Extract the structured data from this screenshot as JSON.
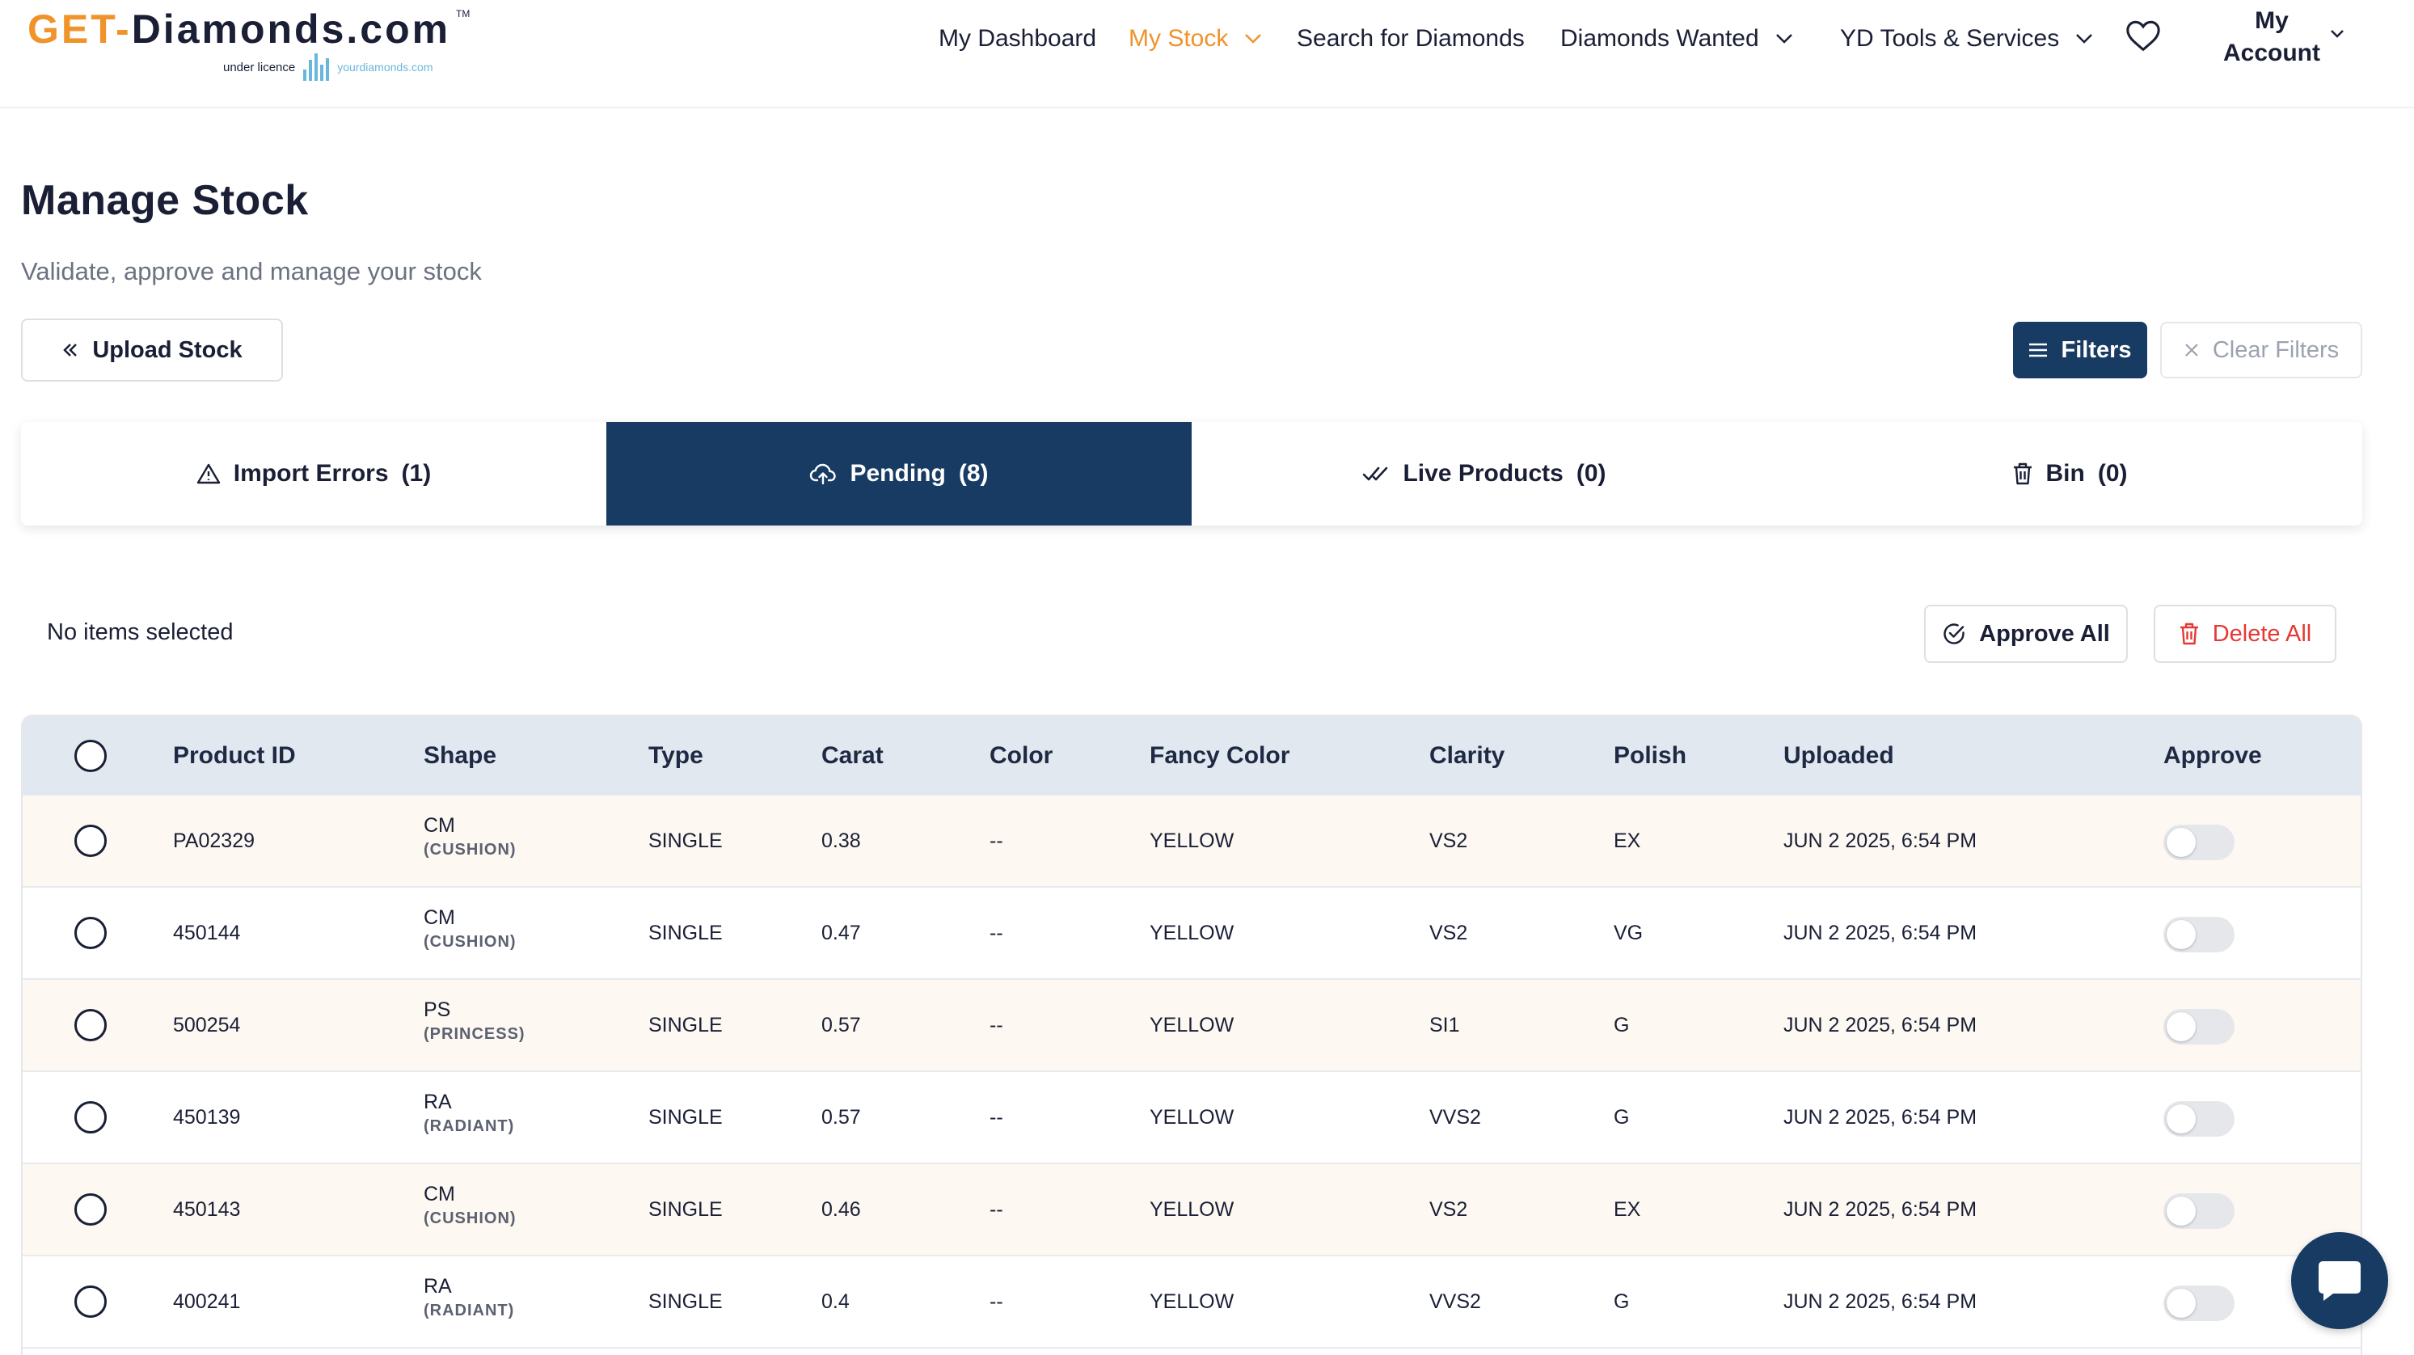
{
  "brand": {
    "logo_part1": "GET-",
    "logo_part2": "Diamonds.com",
    "logo_tm": "TM",
    "licence_text": "under licence",
    "licensor": "yourdiamonds.com"
  },
  "nav": {
    "items": [
      {
        "label": "My Dashboard",
        "dropdown": false,
        "active": false
      },
      {
        "label": "My Stock",
        "dropdown": true,
        "active": true
      },
      {
        "label": "Search for Diamonds",
        "dropdown": false,
        "active": false
      },
      {
        "label": "Diamonds Wanted",
        "dropdown": true,
        "active": false
      },
      {
        "label": "YD Tools & Services",
        "dropdown": true,
        "active": false
      }
    ],
    "favorites_icon": "heart-icon",
    "account_line1": "My",
    "account_line2": "Account"
  },
  "page": {
    "title": "Manage Stock",
    "subtitle": "Validate, approve and manage your stock"
  },
  "actions": {
    "upload_label": "Upload Stock",
    "filters_label": "Filters",
    "clear_filters_label": "Clear Filters"
  },
  "tabs": [
    {
      "label": "Import Errors",
      "count": "(1)",
      "icon": "warning-triangle-icon",
      "active": false
    },
    {
      "label": "Pending",
      "count": "(8)",
      "icon": "cloud-upload-icon",
      "active": true
    },
    {
      "label": "Live Products",
      "count": "(0)",
      "icon": "double-check-icon",
      "active": false
    },
    {
      "label": "Bin",
      "count": "(0)",
      "icon": "trash-icon",
      "active": false
    }
  ],
  "selection": {
    "status": "No items selected",
    "approve_all_label": "Approve All",
    "delete_all_label": "Delete All"
  },
  "table": {
    "columns": [
      "Product ID",
      "Shape",
      "Type",
      "Carat",
      "Color",
      "Fancy Color",
      "Clarity",
      "Polish",
      "Uploaded",
      "Approve"
    ],
    "rows": [
      {
        "product_id": "PA02329",
        "shape_code": "CM",
        "shape_name": "(CUSHION)",
        "type": "SINGLE",
        "carat": "0.38",
        "color": "--",
        "fancy_color": "YELLOW",
        "clarity": "VS2",
        "polish": "EX",
        "uploaded": "JUN 2 2025, 6:54 PM",
        "approved": false
      },
      {
        "product_id": "450144",
        "shape_code": "CM",
        "shape_name": "(CUSHION)",
        "type": "SINGLE",
        "carat": "0.47",
        "color": "--",
        "fancy_color": "YELLOW",
        "clarity": "VS2",
        "polish": "VG",
        "uploaded": "JUN 2 2025, 6:54 PM",
        "approved": false
      },
      {
        "product_id": "500254",
        "shape_code": "PS",
        "shape_name": "(PRINCESS)",
        "type": "SINGLE",
        "carat": "0.57",
        "color": "--",
        "fancy_color": "YELLOW",
        "clarity": "SI1",
        "polish": "G",
        "uploaded": "JUN 2 2025, 6:54 PM",
        "approved": false
      },
      {
        "product_id": "450139",
        "shape_code": "RA",
        "shape_name": "(RADIANT)",
        "type": "SINGLE",
        "carat": "0.57",
        "color": "--",
        "fancy_color": "YELLOW",
        "clarity": "VVS2",
        "polish": "G",
        "uploaded": "JUN 2 2025, 6:54 PM",
        "approved": false
      },
      {
        "product_id": "450143",
        "shape_code": "CM",
        "shape_name": "(CUSHION)",
        "type": "SINGLE",
        "carat": "0.46",
        "color": "--",
        "fancy_color": "YELLOW",
        "clarity": "VS2",
        "polish": "EX",
        "uploaded": "JUN 2 2025, 6:54 PM",
        "approved": false
      },
      {
        "product_id": "400241",
        "shape_code": "RA",
        "shape_name": "(RADIANT)",
        "type": "SINGLE",
        "carat": "0.4",
        "color": "--",
        "fancy_color": "YELLOW",
        "clarity": "VVS2",
        "polish": "G",
        "uploaded": "JUN 2 2025, 6:54 PM",
        "approved": false
      }
    ]
  },
  "colors": {
    "brand_orange": "#f0932b",
    "navy": "#173b62",
    "danger": "#e53935",
    "header_row": "#e2e8ef",
    "odd_row": "#fdf8f1"
  },
  "chat_icon": "chat-bubble-icon"
}
